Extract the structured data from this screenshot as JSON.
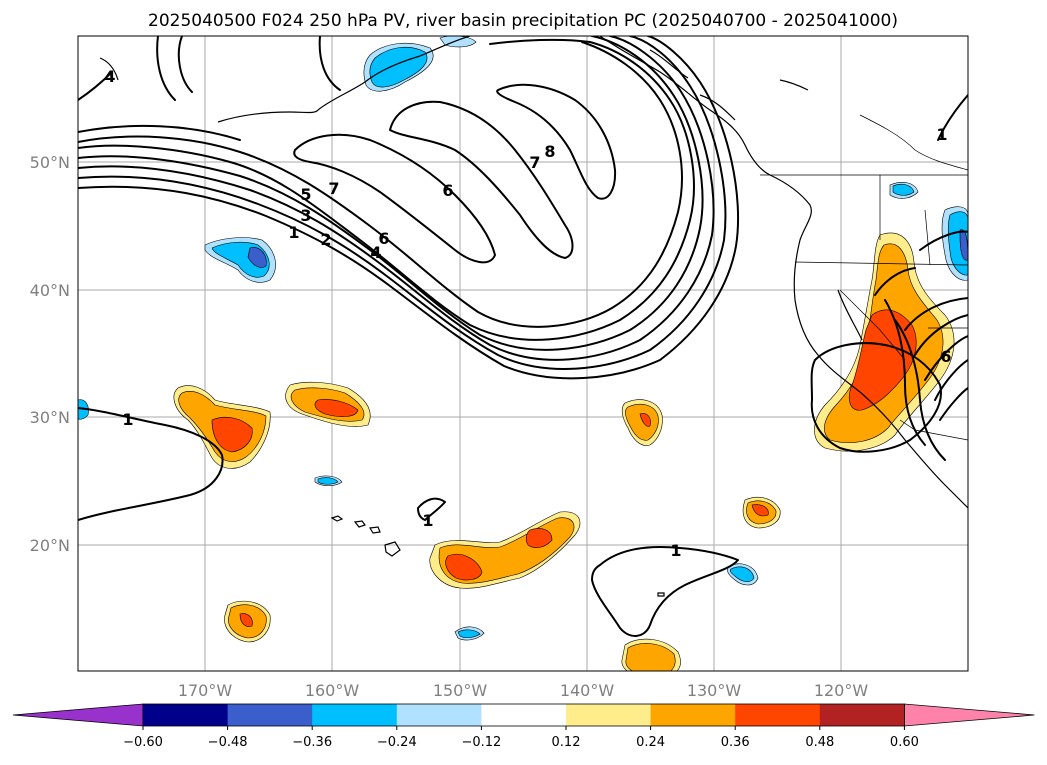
{
  "title": "2025040500 F024 250 hPa PV, river basin precipitation PC (2025040700 - 2025041000)",
  "lat_labels": [
    "50°N",
    "40°N",
    "30°N",
    "20°N"
  ],
  "lon_labels": [
    "170°W",
    "160°W",
    "150°W",
    "140°W",
    "130°W",
    "120°W"
  ],
  "contour_labels": [
    "4",
    "8",
    "7",
    "6",
    "5",
    "3",
    "2",
    "1",
    "6",
    "4",
    "7",
    "1",
    "1",
    "1",
    "1",
    "6"
  ],
  "colorbar": {
    "tick_labels": [
      "−0.60",
      "−0.48",
      "−0.36",
      "−0.24",
      "−0.12",
      "0.12",
      "0.24",
      "0.36",
      "0.48",
      "0.60"
    ],
    "colors": [
      "#9932cc",
      "#00008b",
      "#3a5fcd",
      "#00bfff",
      "#b0e2ff",
      "#ffffff",
      "#ffec8b",
      "#ffa500",
      "#ff4500",
      "#b22222",
      "#ff82ab"
    ]
  }
}
